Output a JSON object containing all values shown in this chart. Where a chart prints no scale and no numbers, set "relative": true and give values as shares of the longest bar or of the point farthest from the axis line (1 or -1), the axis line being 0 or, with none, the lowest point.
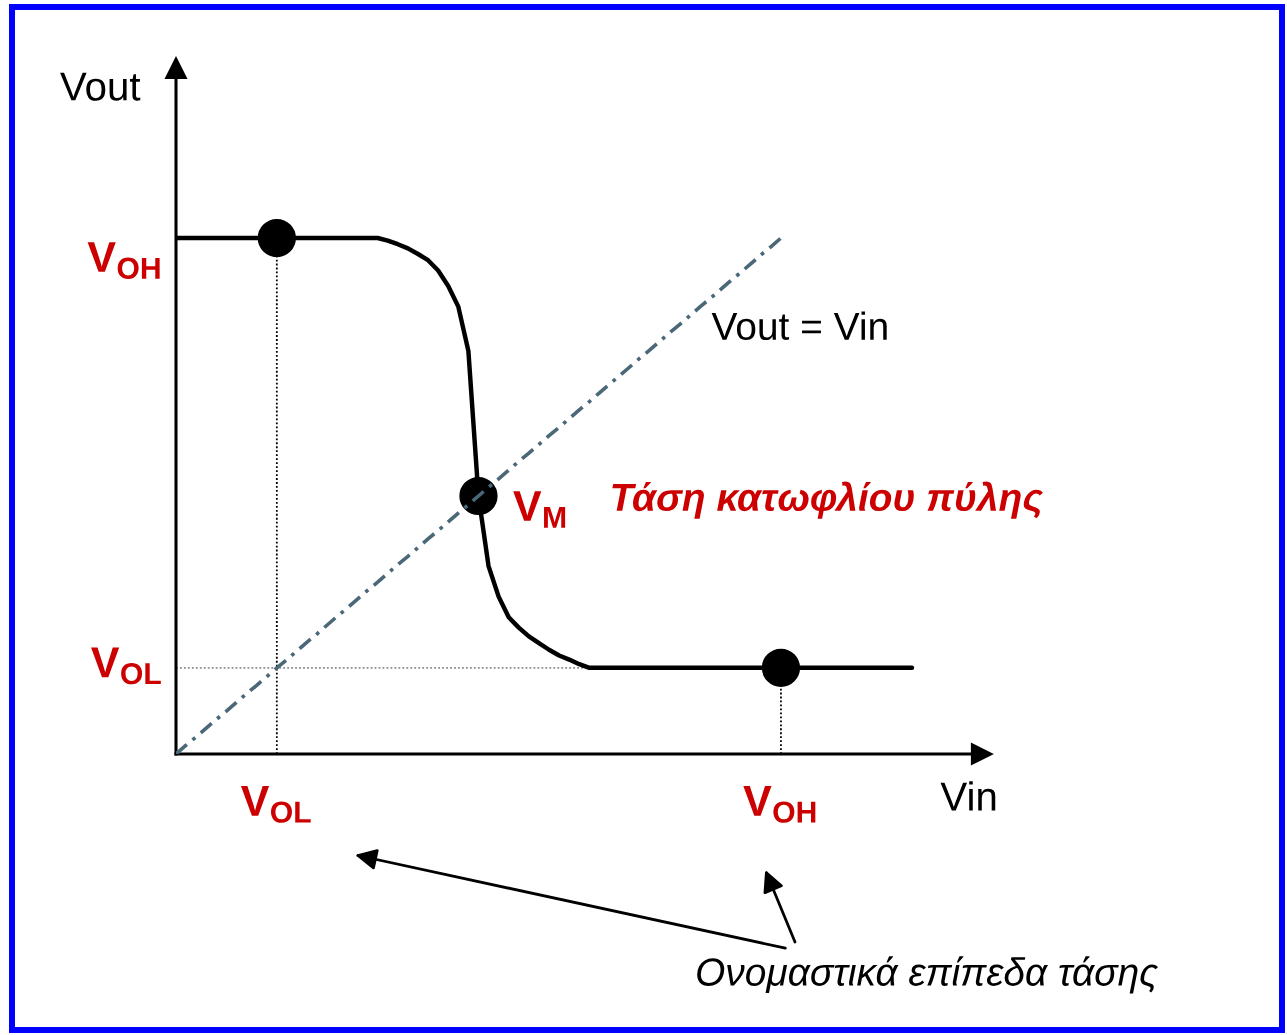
{
  "chart_data": {
    "type": "line",
    "xlabel": "Vin",
    "ylabel": "Vout",
    "relative": true,
    "categories": [
      null,
      null,
      null,
      null,
      null,
      null,
      null,
      null,
      null,
      null,
      "V$_{OL}$",
      null,
      null,
      null,
      null,
      null,
      null,
      null,
      null,
      null,
      null,
      null,
      null,
      null,
      null,
      null,
      null,
      null,
      null,
      null,
      null,
      null,
      null,
      null,
      null,
      null,
      null,
      null,
      null,
      null,
      null,
      null,
      null,
      null,
      null,
      null,
      null,
      null,
      null,
      null,
      null,
      null,
      null,
      null,
      null,
      null,
      null,
      null,
      null,
      null,
      "V$_{OH}$",
      null,
      null,
      null,
      null,
      null,
      null,
      null,
      null,
      null,
      null,
      null,
      null,
      null
    ],
    "series": [
      {
        "color": "#8c8c8c",
        "line_style": "dotted",
        "values": [
          0.167,
          0.167,
          0.167,
          0.167,
          0.167,
          0.167,
          0.167,
          0.167,
          0.167,
          0.167,
          0.167,
          0.167,
          0.167,
          0.167,
          0.167,
          0.167,
          0.167,
          0.167,
          0.167,
          0.167,
          0.167,
          0.167,
          0.167,
          0.167,
          0.167,
          0.167,
          0.167,
          0.167,
          0.167,
          0.167,
          0.167,
          0.167,
          0.167,
          0.167,
          0.167,
          0.167,
          0.167,
          0.167,
          0.167,
          0.167,
          0.167,
          0.167,
          null,
          null,
          null,
          null,
          null,
          null,
          null,
          null,
          null,
          null,
          null,
          null,
          null,
          null,
          null,
          null,
          null,
          null,
          null,
          null,
          null,
          null,
          null,
          null,
          null,
          null,
          null,
          null,
          null,
          null,
          null,
          null
        ]
      },
      {
        "color": "#000000",
        "line_style": "solid",
        "values": [
          1,
          1,
          1,
          1,
          1,
          1,
          1,
          1,
          1,
          1,
          1,
          1,
          1,
          1,
          1,
          1,
          1,
          1,
          1,
          1,
          1,
          0.995,
          0.988,
          0.98,
          0.969,
          0.957,
          0.937,
          0.907,
          0.867,
          0.781,
          0.5,
          0.364,
          0.305,
          0.265,
          0.245,
          0.228,
          0.215,
          0.202,
          0.191,
          0.183,
          0.174,
          0.167,
          0.167,
          0.167,
          0.167,
          0.167,
          0.167,
          0.167,
          0.167,
          0.167,
          0.167,
          0.167,
          0.167,
          0.167,
          0.167,
          0.167,
          0.167,
          0.167,
          0.167,
          0.167,
          0.167,
          0.167,
          0.167,
          0.167,
          0.167,
          0.167,
          0.167,
          0.167,
          0.167,
          0.167,
          0.167,
          0.167,
          0.167,
          0.167
        ]
      },
      {
        "type": "lollipop",
        "color": "#000000",
        "line_style": "dotted",
        "marker": "circle",
        "values": [
          null,
          null,
          null,
          null,
          null,
          null,
          null,
          null,
          null,
          null,
          1,
          null,
          null,
          null,
          null,
          null,
          null,
          null,
          null,
          null,
          null,
          null,
          null,
          null,
          null,
          null,
          null,
          null,
          null,
          null,
          null,
          null,
          null,
          null,
          null,
          null,
          null,
          null,
          null,
          null,
          null,
          null,
          null,
          null,
          null,
          null,
          null,
          null,
          null,
          null,
          null,
          null,
          null,
          null,
          null,
          null,
          null,
          null,
          null,
          null,
          0.167,
          null,
          null,
          null,
          null,
          null,
          null,
          null,
          null,
          null,
          null,
          null,
          null,
          null
        ]
      },
      {
        "type": "scatter",
        "color": "#000000",
        "marker": "circle",
        "values": [
          null,
          null,
          null,
          null,
          null,
          null,
          null,
          null,
          null,
          null,
          null,
          null,
          null,
          null,
          null,
          null,
          null,
          null,
          null,
          null,
          null,
          null,
          null,
          null,
          null,
          null,
          null,
          null,
          null,
          null,
          0.5,
          null,
          null,
          null,
          null,
          null,
          null,
          null,
          null,
          null,
          null,
          null,
          null,
          null,
          null,
          null,
          null,
          null,
          null,
          null,
          null,
          null,
          null,
          null,
          null,
          null,
          null,
          null,
          null,
          null,
          null,
          null,
          null,
          null,
          null,
          null,
          null,
          null,
          null,
          null,
          null,
          null,
          null,
          null
        ]
      },
      {
        "name": "Vout = Vin",
        "color": "#4a6878",
        "line_style": "dashdot",
        "values": [
          0,
          0.017,
          0.033,
          0.05,
          0.067,
          0.083,
          0.1,
          0.117,
          0.133,
          0.15,
          0.167,
          0.183,
          0.2,
          0.217,
          0.233,
          0.25,
          0.267,
          0.283,
          0.3,
          0.317,
          0.333,
          0.35,
          0.367,
          0.383,
          0.4,
          0.417,
          0.433,
          0.45,
          0.467,
          0.483,
          0.5,
          0.517,
          0.533,
          0.55,
          0.567,
          0.583,
          0.6,
          0.617,
          0.633,
          0.65,
          0.667,
          0.683,
          0.7,
          0.717,
          0.733,
          0.75,
          0.767,
          0.783,
          0.8,
          0.817,
          0.833,
          0.85,
          0.867,
          0.883,
          0.9,
          0.917,
          0.933,
          0.95,
          0.967,
          0.983,
          1,
          null,
          null,
          null,
          null,
          null,
          null,
          null,
          null,
          null,
          null,
          null,
          null,
          null
        ]
      }
    ],
    "annotations": [
      "V$_{OH}$",
      "V$_{OL}$",
      "V$_{M}$",
      "Τάση κατωφλίου πύλης",
      "Ονομαστικά επίπεδα τάσης"
    ]
  }
}
